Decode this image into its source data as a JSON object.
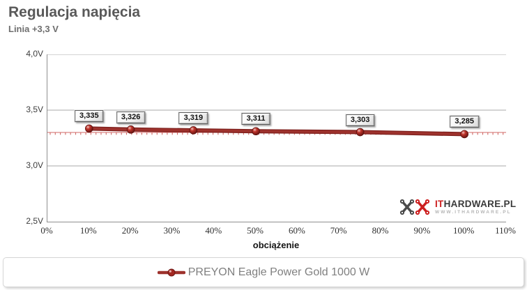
{
  "title": "Regulacja napięcia",
  "subtitle": "Linia +3,3 V",
  "chart_data": {
    "type": "line",
    "title": "Regulacja napięcia",
    "subtitle": "Linia +3,3 V",
    "xlabel": "obciążenie",
    "ylabel": "",
    "xlim": [
      0,
      110
    ],
    "ylim": [
      2.5,
      4.0
    ],
    "grid": "horizontal-gridlines",
    "legend_position": "bottom",
    "x": [
      10,
      20,
      35,
      50,
      75,
      100
    ],
    "series": [
      {
        "name": "PREYON Eagle Power Gold 1000 W",
        "values": [
          3.335,
          3.326,
          3.319,
          3.311,
          3.303,
          3.285
        ],
        "point_labels": [
          "3,335",
          "3,326",
          "3,319",
          "3,311",
          "3,303",
          "3,285"
        ],
        "color": "#9e322d",
        "color_dark": "#7c1f1c",
        "marker_color": "#b22a22"
      }
    ],
    "reference_line": {
      "value": 3.3,
      "color": "#c9504c"
    },
    "yticks": [
      {
        "value": 2.5,
        "label": "2,5V"
      },
      {
        "value": 3.0,
        "label": "3,0V"
      },
      {
        "value": 3.5,
        "label": "3,5V"
      },
      {
        "value": 4.0,
        "label": "4,0V"
      }
    ],
    "xticks": [
      {
        "value": 0,
        "label": "0%"
      },
      {
        "value": 10,
        "label": "10%"
      },
      {
        "value": 20,
        "label": "20%"
      },
      {
        "value": 30,
        "label": "30%"
      },
      {
        "value": 40,
        "label": "40%"
      },
      {
        "value": 50,
        "label": "50%"
      },
      {
        "value": 60,
        "label": "60%"
      },
      {
        "value": 70,
        "label": "70%"
      },
      {
        "value": 80,
        "label": "80%"
      },
      {
        "value": 90,
        "label": "90%"
      },
      {
        "value": 100,
        "label": "100%"
      },
      {
        "value": 110,
        "label": "110%"
      }
    ]
  },
  "legend": {
    "label": "PREYON Eagle Power Gold 1000 W"
  },
  "watermark": {
    "brand_it": "IT",
    "brand_rest": "HARDWARE.PL",
    "url": "WWW.ITHARDWARE.PL",
    "red": "#cc1f1f",
    "dark": "#4a4a4a"
  },
  "colors": {
    "title": "#595959",
    "gridline": "#a9a9a9",
    "axis": "#8f8f8f",
    "legend_text": "#808080"
  }
}
